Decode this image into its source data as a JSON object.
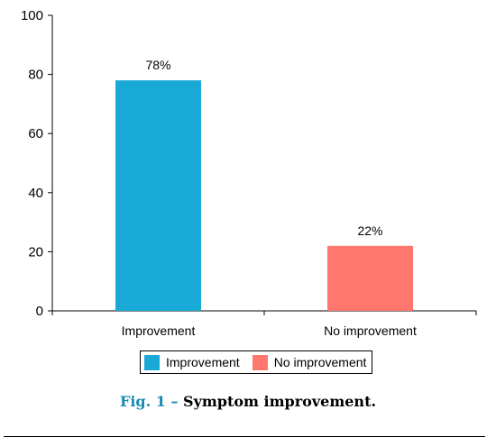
{
  "chart_data": {
    "type": "bar",
    "categories": [
      "Improvement",
      "No improvement"
    ],
    "values": [
      78,
      22
    ],
    "data_labels": [
      "78%",
      "22%"
    ],
    "colors": [
      "#19a9d6",
      "#ff776d"
    ],
    "title": "",
    "xlabel": "",
    "ylabel": "",
    "ylim": [
      0,
      100
    ],
    "yticks": [
      0,
      20,
      40,
      60,
      80,
      100
    ],
    "grid": false,
    "legend": {
      "placement": "bottom-center",
      "entries": [
        "Improvement",
        "No improvement"
      ]
    }
  },
  "caption": {
    "label": "Fig. 1 –",
    "text": "Symptom improvement."
  }
}
